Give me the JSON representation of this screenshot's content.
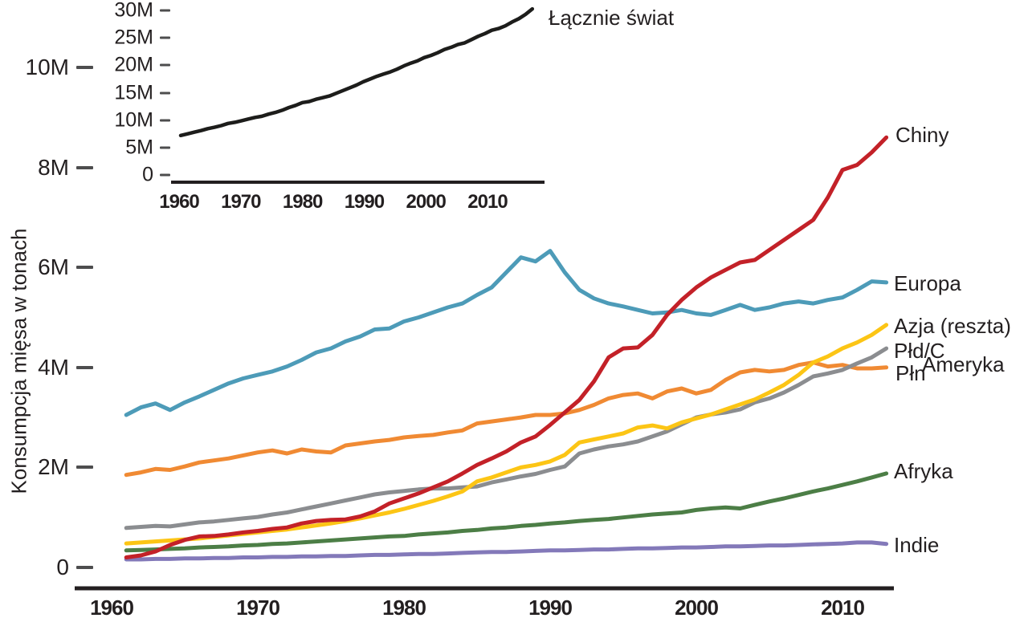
{
  "page": {
    "background": "#ffffff",
    "text_color": "#231f20"
  },
  "labels": {
    "y_axis": "Konsumpcja mięsa w tonach",
    "world": "Łącznie świat",
    "chiny": "Chiny",
    "europa": "Europa",
    "azja_reszta": "Azja (reszta)",
    "pld_c": "Płd/C",
    "ameryka": "Ameryka",
    "pln": "Płn",
    "afryka": "Afryka",
    "indie": "Indie"
  },
  "chart_data": [
    {
      "type": "line",
      "name": "main-chart",
      "ylabel": "Konsumpcja mięsa w tonach",
      "unit": "tonnes (M = millions)",
      "x_years": {
        "start": 1961,
        "end": 2013,
        "step": 1
      },
      "x_tick_labels": [
        "1960",
        "1970",
        "1980",
        "1990",
        "2000",
        "2010"
      ],
      "x_tick_values": [
        1960,
        1970,
        1980,
        1990,
        2000,
        2010
      ],
      "y_tick_labels": [
        "0",
        "2M",
        "4M",
        "6M",
        "8M",
        "10M"
      ],
      "y_tick_values": [
        0,
        2,
        4,
        6,
        8,
        10
      ],
      "ylim": [
        0,
        10.5
      ],
      "grid": false,
      "legend_position": "right-edge-annotations",
      "series": [
        {
          "name": "Chiny",
          "color": "#c32128",
          "values": [
            0.2,
            0.24,
            0.32,
            0.45,
            0.55,
            0.62,
            0.63,
            0.66,
            0.7,
            0.73,
            0.77,
            0.8,
            0.88,
            0.93,
            0.95,
            0.96,
            1.02,
            1.12,
            1.28,
            1.38,
            1.48,
            1.6,
            1.72,
            1.88,
            2.05,
            2.18,
            2.32,
            2.5,
            2.62,
            2.85,
            3.1,
            3.35,
            3.72,
            4.2,
            4.38,
            4.4,
            4.65,
            5.05,
            5.35,
            5.6,
            5.8,
            5.95,
            6.1,
            6.15,
            6.35,
            6.55,
            6.75,
            6.95,
            7.4,
            7.95,
            8.05,
            8.3,
            8.6
          ]
        },
        {
          "name": "Europa",
          "color": "#4d9bb8",
          "values": [
            3.05,
            3.2,
            3.28,
            3.15,
            3.3,
            3.42,
            3.55,
            3.68,
            3.78,
            3.85,
            3.92,
            4.02,
            4.15,
            4.3,
            4.38,
            4.52,
            4.62,
            4.76,
            4.78,
            4.92,
            5.0,
            5.1,
            5.2,
            5.28,
            5.45,
            5.6,
            5.9,
            6.2,
            6.12,
            6.33,
            5.9,
            5.55,
            5.38,
            5.28,
            5.22,
            5.15,
            5.08,
            5.1,
            5.15,
            5.08,
            5.05,
            5.15,
            5.25,
            5.15,
            5.2,
            5.28,
            5.32,
            5.28,
            5.35,
            5.4,
            5.55,
            5.72,
            5.7
          ]
        },
        {
          "name": "Azja (reszta)",
          "color": "#fcc515",
          "values": [
            0.48,
            0.5,
            0.52,
            0.54,
            0.56,
            0.58,
            0.61,
            0.64,
            0.67,
            0.7,
            0.73,
            0.76,
            0.8,
            0.84,
            0.88,
            0.93,
            0.98,
            1.04,
            1.1,
            1.17,
            1.25,
            1.33,
            1.42,
            1.52,
            1.72,
            1.8,
            1.9,
            2.0,
            2.05,
            2.12,
            2.25,
            2.5,
            2.56,
            2.62,
            2.68,
            2.8,
            2.84,
            2.78,
            2.9,
            2.98,
            3.06,
            3.16,
            3.26,
            3.36,
            3.5,
            3.65,
            3.85,
            4.1,
            4.22,
            4.38,
            4.5,
            4.65,
            4.85
          ]
        },
        {
          "name": "Płd/C Ameryka",
          "color": "#8b8d90",
          "values": [
            0.79,
            0.81,
            0.83,
            0.82,
            0.86,
            0.9,
            0.92,
            0.95,
            0.98,
            1.01,
            1.06,
            1.1,
            1.16,
            1.22,
            1.28,
            1.34,
            1.4,
            1.46,
            1.5,
            1.53,
            1.56,
            1.58,
            1.58,
            1.6,
            1.62,
            1.7,
            1.76,
            1.82,
            1.87,
            1.95,
            2.02,
            2.28,
            2.36,
            2.42,
            2.46,
            2.52,
            2.62,
            2.72,
            2.86,
            3.0,
            3.06,
            3.1,
            3.16,
            3.3,
            3.38,
            3.5,
            3.65,
            3.82,
            3.88,
            3.95,
            4.08,
            4.2,
            4.38
          ]
        },
        {
          "name": "Płn Ameryka",
          "color": "#f08a33",
          "values": [
            1.85,
            1.9,
            1.97,
            1.95,
            2.02,
            2.1,
            2.14,
            2.18,
            2.24,
            2.3,
            2.34,
            2.28,
            2.36,
            2.32,
            2.3,
            2.44,
            2.48,
            2.52,
            2.55,
            2.6,
            2.63,
            2.65,
            2.7,
            2.74,
            2.88,
            2.92,
            2.96,
            3.0,
            3.05,
            3.05,
            3.08,
            3.15,
            3.25,
            3.38,
            3.45,
            3.48,
            3.38,
            3.52,
            3.58,
            3.48,
            3.55,
            3.75,
            3.9,
            3.95,
            3.92,
            3.95,
            4.05,
            4.1,
            4.02,
            4.05,
            3.98,
            3.98,
            4.0
          ]
        },
        {
          "name": "Afryka",
          "color": "#4c7e46",
          "values": [
            0.34,
            0.35,
            0.36,
            0.37,
            0.38,
            0.4,
            0.41,
            0.42,
            0.44,
            0.45,
            0.47,
            0.48,
            0.5,
            0.52,
            0.54,
            0.56,
            0.58,
            0.6,
            0.62,
            0.63,
            0.66,
            0.68,
            0.7,
            0.73,
            0.75,
            0.78,
            0.8,
            0.83,
            0.85,
            0.88,
            0.9,
            0.93,
            0.95,
            0.97,
            1.0,
            1.03,
            1.06,
            1.08,
            1.1,
            1.15,
            1.18,
            1.2,
            1.18,
            1.25,
            1.32,
            1.38,
            1.45,
            1.52,
            1.58,
            1.65,
            1.72,
            1.8,
            1.88
          ]
        },
        {
          "name": "Indie",
          "color": "#8379b9",
          "values": [
            0.16,
            0.16,
            0.17,
            0.17,
            0.18,
            0.18,
            0.19,
            0.19,
            0.2,
            0.2,
            0.21,
            0.21,
            0.22,
            0.22,
            0.23,
            0.23,
            0.24,
            0.25,
            0.25,
            0.26,
            0.27,
            0.27,
            0.28,
            0.29,
            0.3,
            0.31,
            0.31,
            0.32,
            0.33,
            0.34,
            0.34,
            0.35,
            0.36,
            0.36,
            0.37,
            0.38,
            0.38,
            0.39,
            0.4,
            0.4,
            0.41,
            0.42,
            0.42,
            0.43,
            0.44,
            0.44,
            0.45,
            0.46,
            0.47,
            0.48,
            0.5,
            0.5,
            0.47
          ]
        }
      ]
    },
    {
      "type": "line",
      "name": "inset-chart",
      "title": "Łącznie świat",
      "unit": "tonnes (M = millions)",
      "x_years": {
        "start": 1961,
        "end": 2013,
        "step": 1
      },
      "x_tick_labels": [
        "1960",
        "1970",
        "1980",
        "1990",
        "2000",
        "2010"
      ],
      "x_tick_values": [
        1960,
        1970,
        1980,
        1990,
        2000,
        2010
      ],
      "y_tick_labels": [
        "0",
        "5M",
        "10M",
        "15M",
        "20M",
        "25M",
        "30M"
      ],
      "y_tick_values": [
        0,
        5,
        10,
        15,
        20,
        25,
        30
      ],
      "ylim": [
        0,
        31
      ],
      "grid": false,
      "series": [
        {
          "name": "Łącznie świat",
          "color": "#1d1d1b",
          "values": [
            7.2,
            7.5,
            7.8,
            8.1,
            8.45,
            8.7,
            9.0,
            9.4,
            9.6,
            9.9,
            10.2,
            10.5,
            10.7,
            11.1,
            11.4,
            11.8,
            12.3,
            12.7,
            13.2,
            13.4,
            13.8,
            14.1,
            14.4,
            14.9,
            15.4,
            15.9,
            16.4,
            17.0,
            17.5,
            18.0,
            18.4,
            18.8,
            19.3,
            19.9,
            20.4,
            20.8,
            21.4,
            21.8,
            22.3,
            22.9,
            23.3,
            23.8,
            24.1,
            24.7,
            25.3,
            25.8,
            26.4,
            26.7,
            27.2,
            27.9,
            28.5,
            29.3,
            30.3
          ]
        }
      ]
    }
  ]
}
